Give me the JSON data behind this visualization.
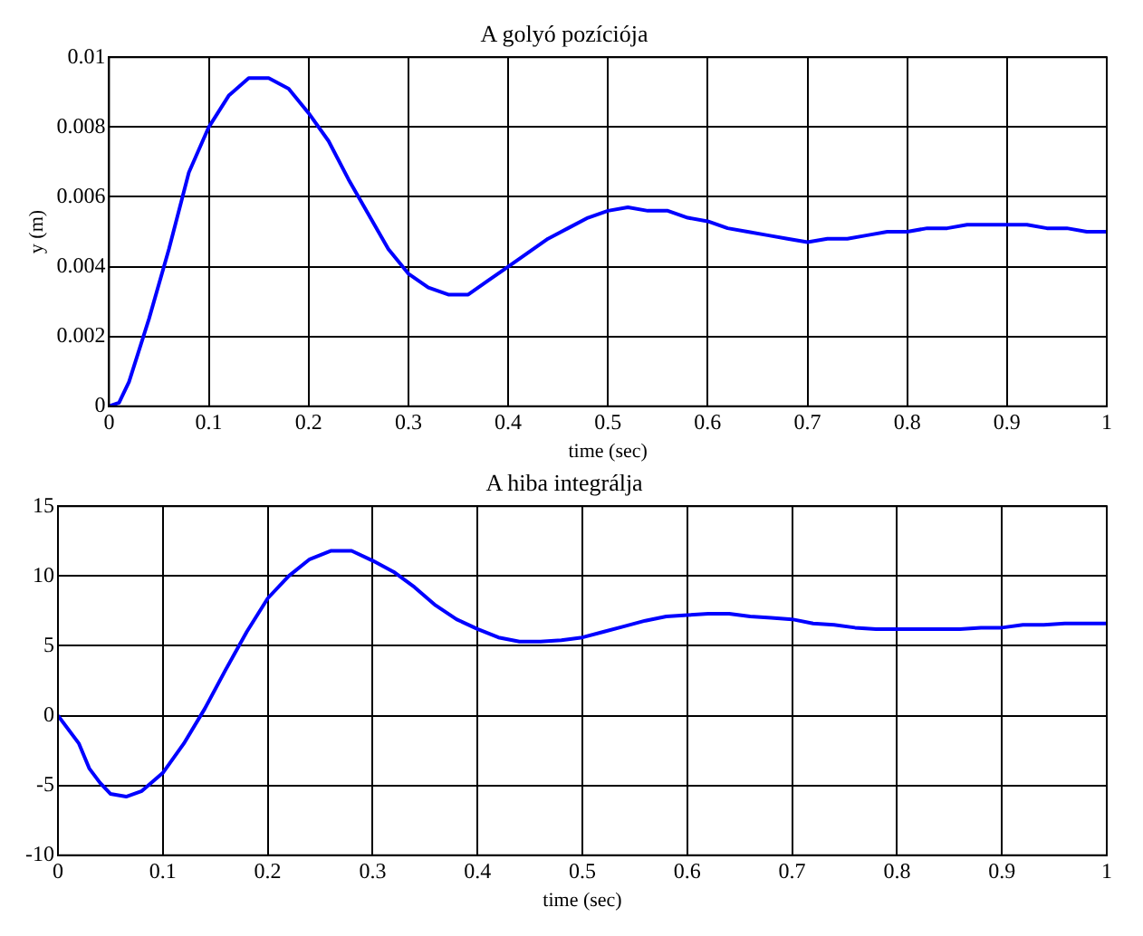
{
  "chart_data": [
    {
      "type": "line",
      "title": "A golyó pozíciója",
      "xlabel": "time (sec)",
      "ylabel": "y (m)",
      "xlim": [
        0,
        1
      ],
      "xticks": [
        0,
        0.1,
        0.2,
        0.3,
        0.4,
        0.5,
        0.6,
        0.7,
        0.8,
        0.9,
        1
      ],
      "ylim": [
        0,
        0.01
      ],
      "yticks": [
        0,
        0.002,
        0.004,
        0.006,
        0.008,
        0.01
      ],
      "grid": true,
      "legend": false,
      "marker": "none",
      "line_style": "solid",
      "series": [
        {
          "color": "#0000ff",
          "x": [
            0,
            0.01,
            0.02,
            0.04,
            0.06,
            0.08,
            0.1,
            0.12,
            0.14,
            0.16,
            0.18,
            0.2,
            0.22,
            0.24,
            0.26,
            0.28,
            0.3,
            0.32,
            0.34,
            0.36,
            0.38,
            0.4,
            0.42,
            0.44,
            0.46,
            0.48,
            0.5,
            0.52,
            0.54,
            0.56,
            0.58,
            0.6,
            0.62,
            0.64,
            0.66,
            0.68,
            0.7,
            0.72,
            0.74,
            0.76,
            0.78,
            0.8,
            0.82,
            0.84,
            0.86,
            0.9,
            0.92,
            0.94,
            0.96,
            0.98,
            1
          ],
          "values": [
            0,
            0.0001,
            0.0007,
            0.0025,
            0.0045,
            0.0067,
            0.008,
            0.0089,
            0.0094,
            0.0094,
            0.0091,
            0.0084,
            0.0076,
            0.0065,
            0.0055,
            0.0045,
            0.0038,
            0.0034,
            0.0032,
            0.0032,
            0.0036,
            0.004,
            0.0044,
            0.0048,
            0.0051,
            0.0054,
            0.0056,
            0.0057,
            0.0056,
            0.0056,
            0.0054,
            0.0053,
            0.0051,
            0.005,
            0.0049,
            0.0048,
            0.0047,
            0.0048,
            0.0048,
            0.0049,
            0.005,
            0.005,
            0.0051,
            0.0051,
            0.0052,
            0.0052,
            0.0052,
            0.0051,
            0.0051,
            0.005,
            0.005
          ]
        }
      ]
    },
    {
      "type": "line",
      "title": "A hiba integrálja",
      "xlabel": "time (sec)",
      "xlim": [
        0,
        1
      ],
      "xticks": [
        0,
        0.1,
        0.2,
        0.3,
        0.4,
        0.5,
        0.6,
        0.7,
        0.8,
        0.9,
        1
      ],
      "ylim": [
        -10,
        15
      ],
      "yticks": [
        -10,
        -5,
        0,
        5,
        10,
        15
      ],
      "grid": true,
      "legend": false,
      "marker": "none",
      "line_style": "solid",
      "series": [
        {
          "color": "#0000ff",
          "x": [
            0,
            0.02,
            0.03,
            0.04,
            0.05,
            0.065,
            0.08,
            0.1,
            0.12,
            0.14,
            0.16,
            0.18,
            0.2,
            0.22,
            0.24,
            0.26,
            0.28,
            0.3,
            0.32,
            0.34,
            0.36,
            0.38,
            0.4,
            0.42,
            0.44,
            0.46,
            0.48,
            0.5,
            0.52,
            0.54,
            0.56,
            0.58,
            0.6,
            0.62,
            0.64,
            0.66,
            0.68,
            0.7,
            0.72,
            0.74,
            0.76,
            0.78,
            0.8,
            0.86,
            0.88,
            0.9,
            0.92,
            0.94,
            0.96,
            1
          ],
          "values": [
            0,
            -2,
            -3.8,
            -4.8,
            -5.6,
            -5.8,
            -5.4,
            -4.1,
            -2,
            0.5,
            3.3,
            6,
            8.4,
            10,
            11.2,
            11.8,
            11.8,
            11.1,
            10.3,
            9.2,
            7.9,
            6.9,
            6.2,
            5.6,
            5.3,
            5.3,
            5.4,
            5.6,
            6,
            6.4,
            6.8,
            7.1,
            7.2,
            7.3,
            7.3,
            7.1,
            7,
            6.9,
            6.6,
            6.5,
            6.3,
            6.2,
            6.2,
            6.2,
            6.3,
            6.3,
            6.5,
            6.5,
            6.6,
            6.6
          ]
        }
      ]
    }
  ]
}
